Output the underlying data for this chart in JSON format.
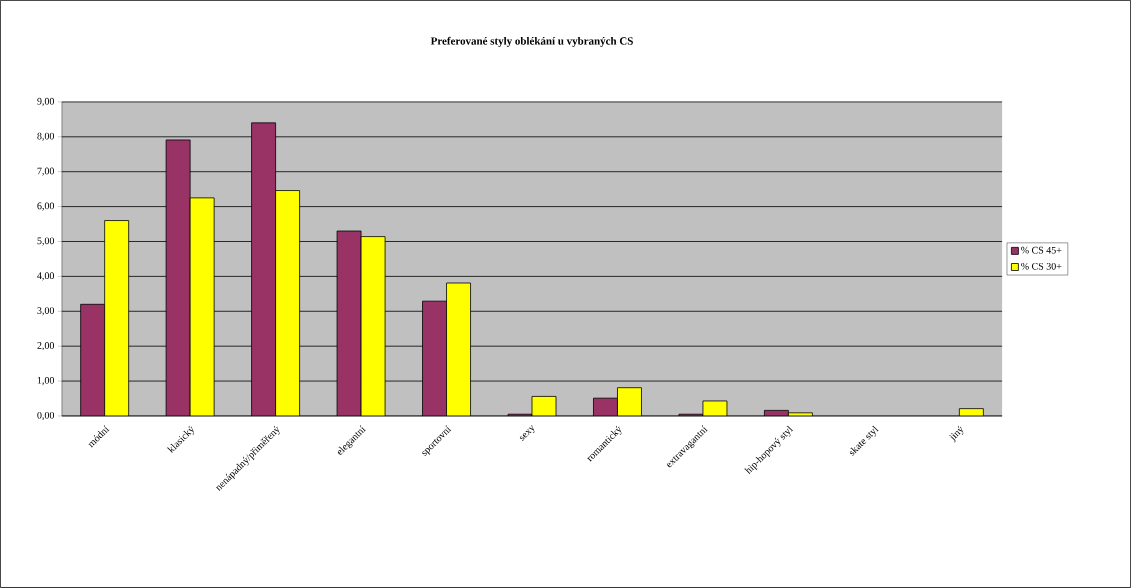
{
  "chart_data": {
    "type": "bar",
    "title": "Preferované styly oblékání u vybraných CS",
    "categories": [
      "módní",
      "klasický",
      "nenápadný/přiměřený",
      "elegantní",
      "sportovní",
      "sexy",
      "romantický",
      "extravagantní",
      "hip-hopový styl",
      "skate styl",
      "jiný"
    ],
    "series": [
      {
        "name": "% CS 45+",
        "color": "#993366",
        "values": [
          3.2,
          7.91,
          8.4,
          5.3,
          3.29,
          0.05,
          0.51,
          0.05,
          0.16,
          null,
          null
        ]
      },
      {
        "name": "% CS  30+",
        "color": "#ffff00",
        "values": [
          5.6,
          6.25,
          6.46,
          5.14,
          3.81,
          0.56,
          0.81,
          0.43,
          0.09,
          null,
          0.21
        ]
      }
    ],
    "ylim": [
      0,
      9
    ],
    "yticks": [
      {
        "value": 0,
        "label": "0,00"
      },
      {
        "value": 1,
        "label": "1,00"
      },
      {
        "value": 2,
        "label": "2,00"
      },
      {
        "value": 3,
        "label": "3,00"
      },
      {
        "value": 4,
        "label": "4,00"
      },
      {
        "value": 5,
        "label": "5,00"
      },
      {
        "value": 6,
        "label": "6,00"
      },
      {
        "value": 7,
        "label": "7,00"
      },
      {
        "value": 8,
        "label": "8,00"
      },
      {
        "value": 9,
        "label": "9,00"
      }
    ],
    "grid": "y",
    "legend": "right"
  }
}
